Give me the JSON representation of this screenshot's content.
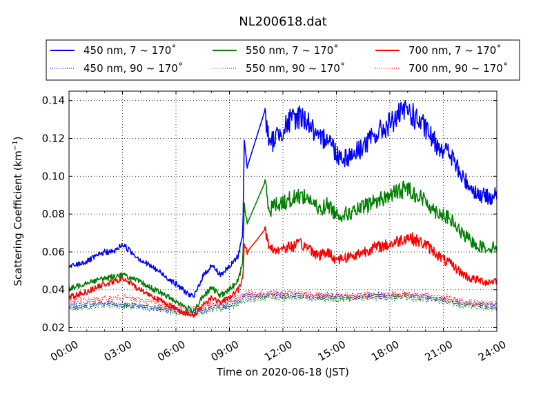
{
  "chart_data": {
    "type": "line",
    "title": "NL200618.dat",
    "xlabel": "Time on 2020-06-18 (JST)",
    "ylabel_main": "Scattering Coefficient (km",
    "ylabel_sup": "−1",
    "ylabel_end": ")",
    "xlim": [
      "00:00",
      "24:00"
    ],
    "ylim": [
      0.018,
      0.145
    ],
    "grid": true,
    "legend_position": "top-above-plot",
    "x_ticks": [
      "00:00",
      "03:00",
      "06:00",
      "09:00",
      "12:00",
      "15:00",
      "18:00",
      "21:00",
      "24:00"
    ],
    "y_ticks": [
      "0.02",
      "0.04",
      "0.06",
      "0.08",
      "0.10",
      "0.12",
      "0.14"
    ],
    "series": [
      {
        "name": "450 nm, 7 ~ 170˚",
        "color": "#0000ff",
        "style": "solid",
        "x": [
          "00:00",
          "01:00",
          "02:00",
          "02:30",
          "03:00",
          "03:30",
          "04:00",
          "05:00",
          "06:00",
          "06:40",
          "07:00",
          "07:30",
          "08:00",
          "08:30",
          "09:00",
          "09:30",
          "09:45",
          "09:50",
          "10:00",
          "11:00",
          "11:15",
          "11:30",
          "12:00",
          "12:30",
          "13:00",
          "13:30",
          "14:00",
          "14:30",
          "15:00",
          "15:30",
          "16:00",
          "17:00",
          "18:00",
          "18:30",
          "19:00",
          "19:30",
          "20:00",
          "20:30",
          "21:00",
          "21:30",
          "22:00",
          "22:30",
          "23:00",
          "23:30",
          "24:00"
        ],
        "y": [
          0.052,
          0.055,
          0.06,
          0.06,
          0.064,
          0.06,
          0.056,
          0.05,
          0.043,
          0.038,
          0.036,
          0.047,
          0.053,
          0.048,
          0.052,
          0.058,
          0.07,
          0.118,
          0.105,
          0.135,
          0.115,
          0.12,
          0.125,
          0.13,
          0.132,
          0.128,
          0.118,
          0.122,
          0.112,
          0.11,
          0.112,
          0.12,
          0.128,
          0.132,
          0.135,
          0.13,
          0.125,
          0.118,
          0.115,
          0.11,
          0.1,
          0.095,
          0.09,
          0.089,
          0.09
        ]
      },
      {
        "name": "550 nm, 7 ~ 170˚",
        "color": "#008000",
        "style": "solid",
        "x": [
          "00:00",
          "01:00",
          "02:00",
          "02:30",
          "03:00",
          "03:30",
          "04:00",
          "05:00",
          "06:00",
          "06:40",
          "07:00",
          "07:30",
          "08:00",
          "08:30",
          "09:00",
          "09:30",
          "09:45",
          "09:50",
          "10:00",
          "11:00",
          "11:15",
          "11:30",
          "12:00",
          "12:30",
          "13:00",
          "13:30",
          "14:00",
          "14:30",
          "15:00",
          "15:30",
          "16:00",
          "17:00",
          "18:00",
          "18:30",
          "19:00",
          "19:30",
          "20:00",
          "20:30",
          "21:00",
          "21:30",
          "22:00",
          "22:30",
          "23:00",
          "23:30",
          "24:00"
        ],
        "y": [
          0.04,
          0.044,
          0.046,
          0.047,
          0.048,
          0.046,
          0.044,
          0.039,
          0.034,
          0.03,
          0.029,
          0.036,
          0.041,
          0.037,
          0.04,
          0.045,
          0.055,
          0.085,
          0.075,
          0.097,
          0.082,
          0.085,
          0.086,
          0.088,
          0.09,
          0.088,
          0.082,
          0.085,
          0.08,
          0.08,
          0.081,
          0.086,
          0.09,
          0.092,
          0.094,
          0.09,
          0.087,
          0.082,
          0.08,
          0.076,
          0.07,
          0.066,
          0.063,
          0.062,
          0.063
        ]
      },
      {
        "name": "700 nm, 7 ~ 170˚",
        "color": "#ff0000",
        "style": "solid",
        "x": [
          "00:00",
          "01:00",
          "02:00",
          "02:30",
          "03:00",
          "03:30",
          "04:00",
          "05:00",
          "06:00",
          "06:40",
          "07:00",
          "07:30",
          "08:00",
          "08:30",
          "09:00",
          "09:30",
          "09:45",
          "09:50",
          "10:00",
          "11:00",
          "11:15",
          "11:30",
          "12:00",
          "12:30",
          "13:00",
          "13:30",
          "14:00",
          "14:30",
          "15:00",
          "15:30",
          "16:00",
          "17:00",
          "18:00",
          "18:30",
          "19:00",
          "19:30",
          "20:00",
          "20:30",
          "21:00",
          "21:30",
          "22:00",
          "22:30",
          "23:00",
          "23:30",
          "24:00"
        ],
        "y": [
          0.036,
          0.039,
          0.043,
          0.044,
          0.046,
          0.043,
          0.04,
          0.035,
          0.03,
          0.027,
          0.026,
          0.032,
          0.036,
          0.033,
          0.036,
          0.04,
          0.046,
          0.065,
          0.06,
          0.072,
          0.062,
          0.061,
          0.062,
          0.063,
          0.064,
          0.062,
          0.058,
          0.06,
          0.056,
          0.057,
          0.058,
          0.062,
          0.064,
          0.066,
          0.068,
          0.066,
          0.064,
          0.06,
          0.056,
          0.053,
          0.049,
          0.046,
          0.045,
          0.044,
          0.045
        ]
      },
      {
        "name": "450 nm, 90 ~ 170˚",
        "color": "#0000ff",
        "style": "dotted",
        "x": [
          "00:00",
          "02:00",
          "03:00",
          "05:00",
          "06:00",
          "07:00",
          "08:00",
          "09:00",
          "10:00",
          "11:00",
          "13:00",
          "15:00",
          "17:00",
          "19:00",
          "21:00",
          "22:00",
          "24:00"
        ],
        "y": [
          0.031,
          0.033,
          0.032,
          0.03,
          0.029,
          0.028,
          0.03,
          0.032,
          0.037,
          0.037,
          0.037,
          0.036,
          0.037,
          0.037,
          0.035,
          0.033,
          0.031
        ]
      },
      {
        "name": "550 nm, 90 ~ 170˚",
        "color": "#008000",
        "style": "dotted",
        "x": [
          "00:00",
          "02:00",
          "03:00",
          "05:00",
          "06:00",
          "07:00",
          "08:00",
          "09:00",
          "10:00",
          "11:00",
          "13:00",
          "15:00",
          "17:00",
          "19:00",
          "21:00",
          "22:00",
          "24:00"
        ],
        "y": [
          0.03,
          0.032,
          0.032,
          0.03,
          0.028,
          0.028,
          0.029,
          0.031,
          0.035,
          0.036,
          0.036,
          0.035,
          0.036,
          0.036,
          0.034,
          0.032,
          0.03
        ]
      },
      {
        "name": "700 nm, 90 ~ 170˚",
        "color": "#ff0000",
        "style": "dotted",
        "x": [
          "00:00",
          "02:00",
          "03:00",
          "05:00",
          "06:00",
          "07:00",
          "08:00",
          "09:00",
          "10:00",
          "11:00",
          "13:00",
          "15:00",
          "17:00",
          "19:00",
          "21:00",
          "22:00",
          "24:00"
        ],
        "y": [
          0.034,
          0.035,
          0.036,
          0.033,
          0.031,
          0.03,
          0.032,
          0.034,
          0.038,
          0.038,
          0.038,
          0.037,
          0.037,
          0.038,
          0.036,
          0.034,
          0.032
        ]
      }
    ]
  }
}
